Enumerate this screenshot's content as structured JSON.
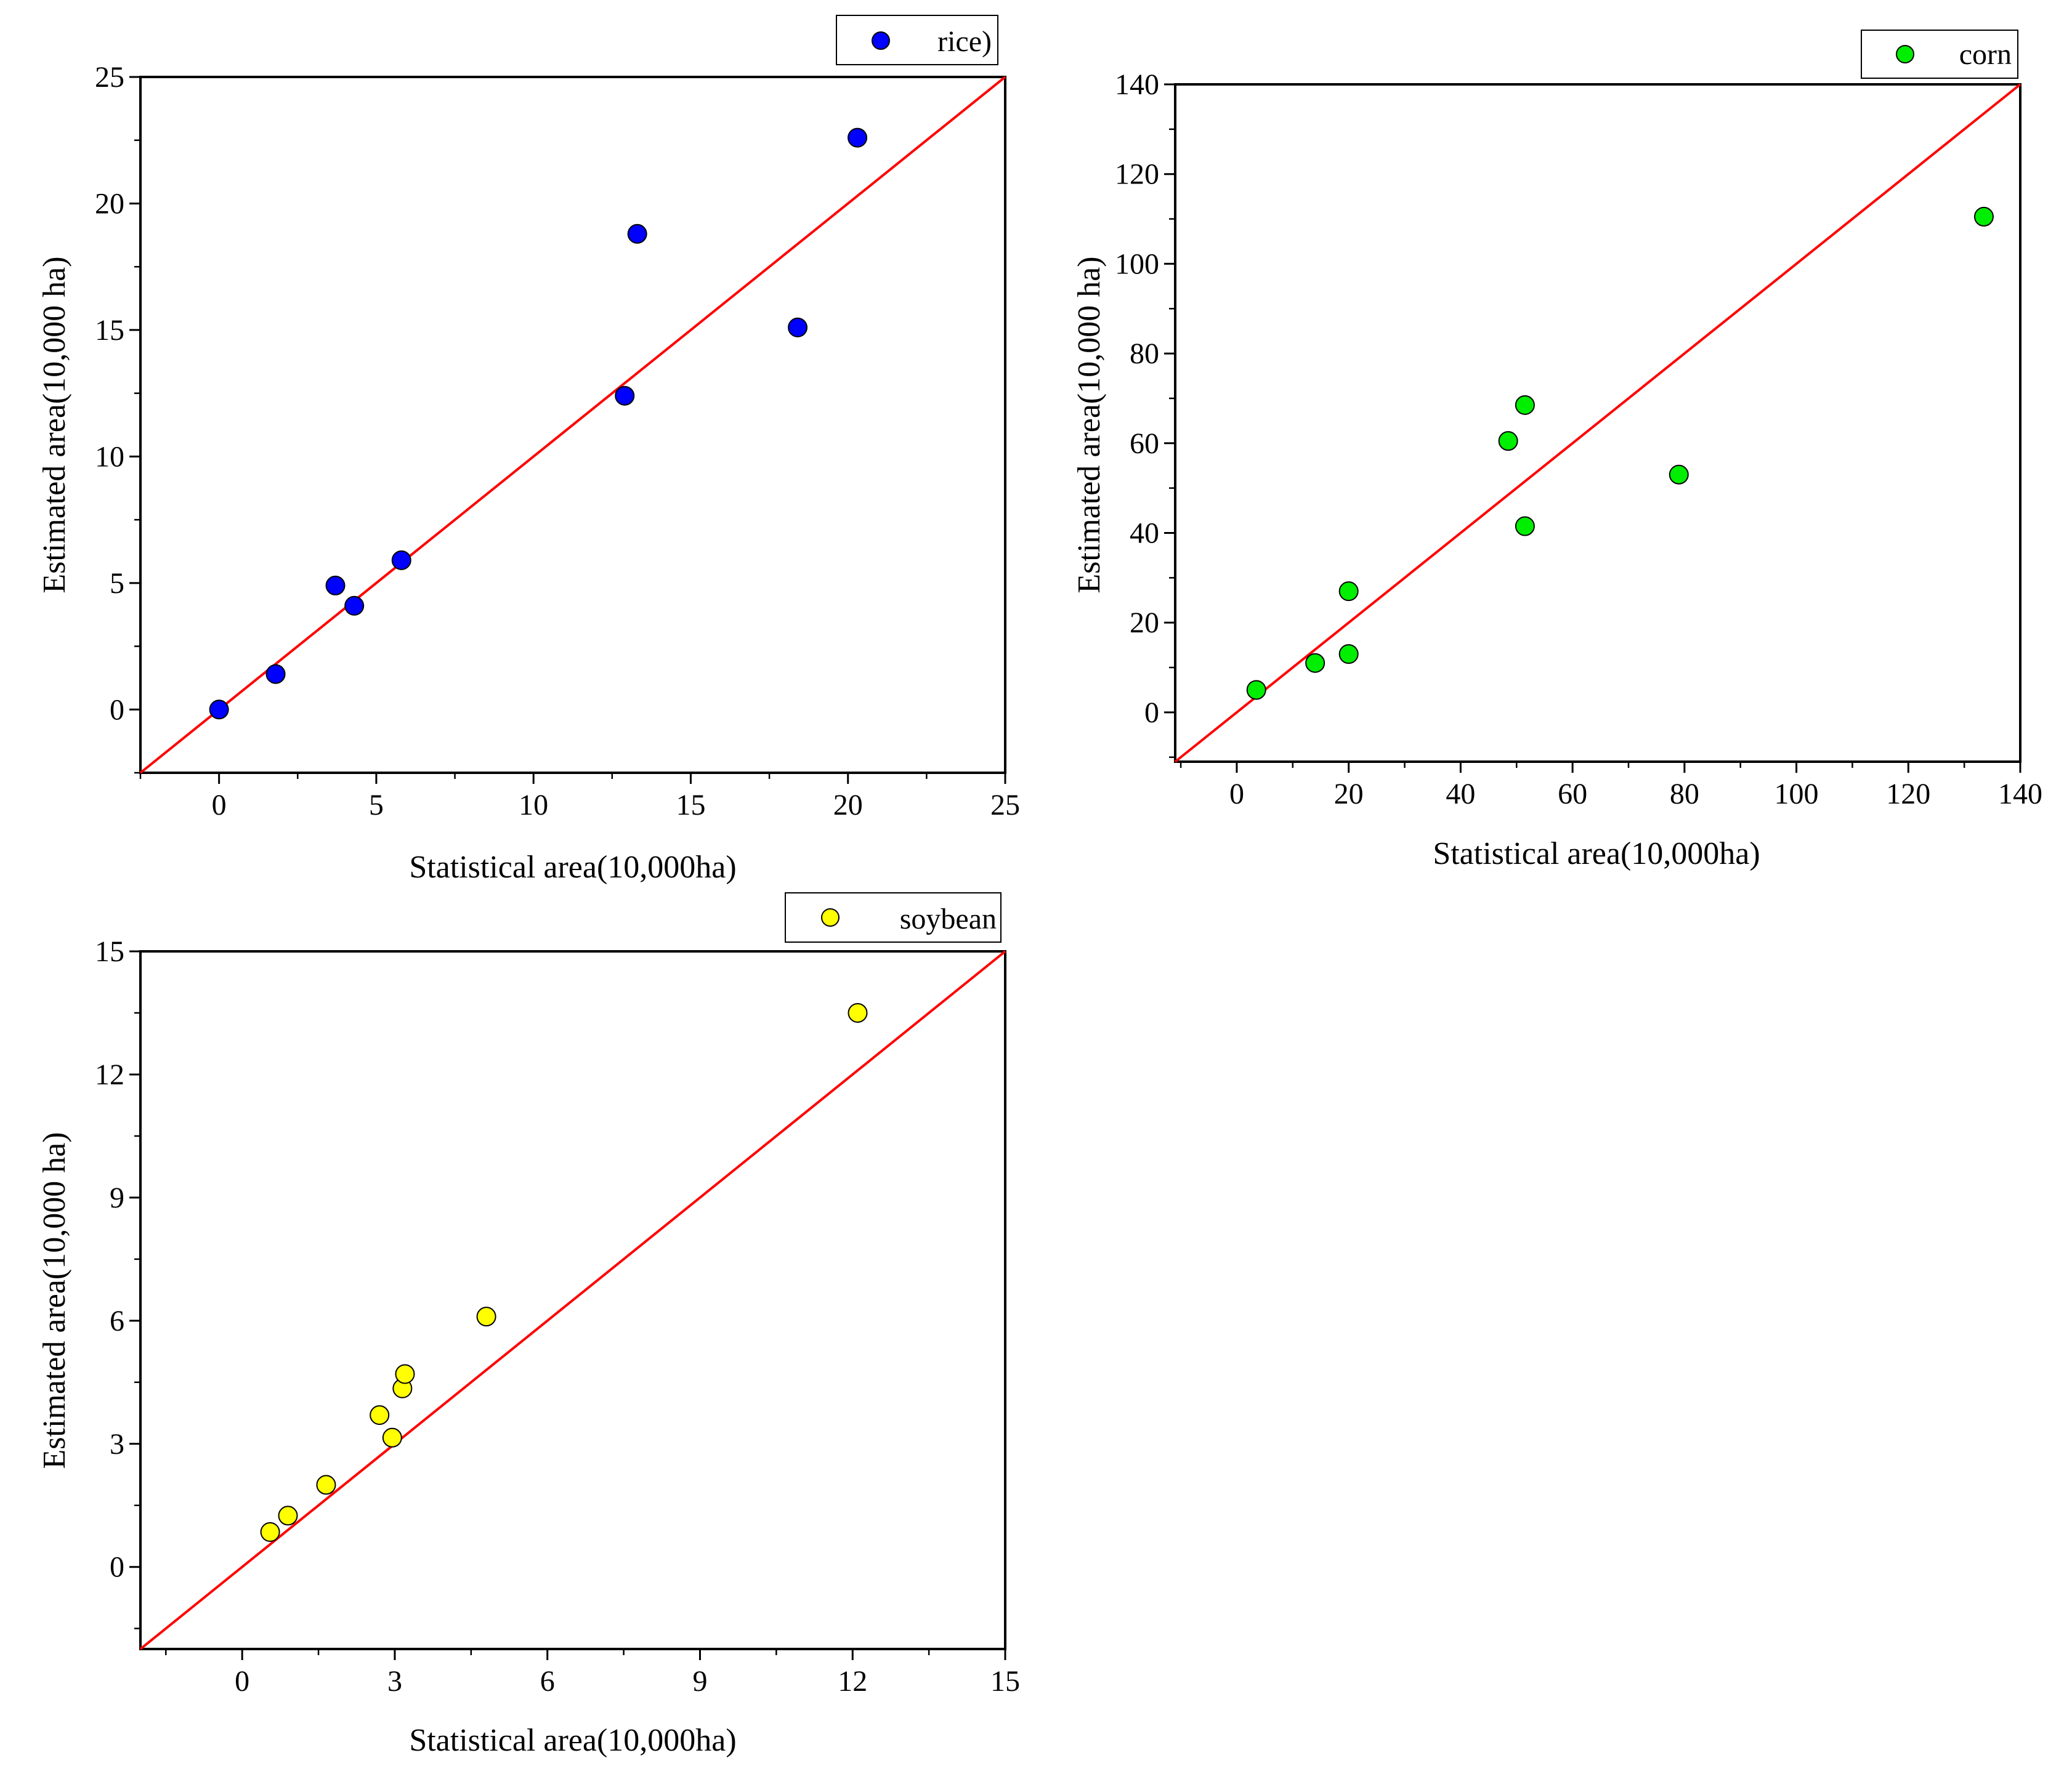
{
  "colors": {
    "rice": "#0000ff",
    "corn": "#00ee00",
    "soybean": "#ffff00",
    "diagonal": "#ff0000",
    "marker_edge": "#000000"
  },
  "chart_data": [
    {
      "type": "scatter",
      "id": "rice",
      "legend": "rice)",
      "legend_position": "top-right, above plot",
      "xlabel": "Statistical area(10,000ha)",
      "ylabel": "Estimated area(10,000 ha)",
      "xlim": [
        -2.5,
        25
      ],
      "ylim": [
        -2.5,
        25
      ],
      "xticks": [
        0,
        5,
        10,
        15,
        20,
        25
      ],
      "yticks": [
        0,
        5,
        10,
        15,
        20,
        25
      ],
      "x": [
        0.0,
        1.8,
        3.7,
        4.3,
        5.8,
        12.9,
        13.3,
        18.4,
        20.3
      ],
      "y": [
        0.0,
        1.4,
        4.9,
        4.1,
        5.9,
        12.4,
        18.8,
        15.1,
        22.6
      ],
      "reference_line": "y = x",
      "grid": false
    },
    {
      "type": "scatter",
      "id": "corn",
      "legend": "corn",
      "legend_position": "top-right, above plot",
      "xlabel": "Statistical area(10,000ha)",
      "ylabel": "Estimated area(10,000 ha)",
      "xlim": [
        -11,
        140
      ],
      "ylim": [
        -11,
        140
      ],
      "xticks": [
        0,
        20,
        40,
        60,
        80,
        100,
        120,
        140
      ],
      "yticks": [
        0,
        20,
        40,
        60,
        80,
        100,
        120,
        140
      ],
      "x": [
        3.5,
        14,
        20,
        20,
        48.5,
        51.5,
        51.5,
        79,
        133.5
      ],
      "y": [
        5,
        11,
        13,
        27,
        60.5,
        68.5,
        41.5,
        53,
        110.5
      ],
      "reference_line": "y = x",
      "grid": false
    },
    {
      "type": "scatter",
      "id": "soybean",
      "legend": "soybean",
      "legend_position": "top-right, above plot",
      "xlabel": "Statistical area(10,000ha)",
      "ylabel": "Estimated area(10,000 ha)",
      "xlim": [
        -2,
        15
      ],
      "ylim": [
        -2,
        15
      ],
      "xticks": [
        0,
        3,
        6,
        9,
        12,
        15
      ],
      "yticks": [
        0,
        3,
        6,
        9,
        12,
        15
      ],
      "x": [
        0.55,
        0.9,
        1.65,
        2.7,
        2.95,
        3.15,
        3.2,
        4.8,
        12.1
      ],
      "y": [
        0.85,
        1.25,
        2.0,
        3.7,
        3.15,
        4.35,
        4.7,
        6.1,
        13.5
      ],
      "reference_line": "y = x",
      "grid": false
    }
  ]
}
